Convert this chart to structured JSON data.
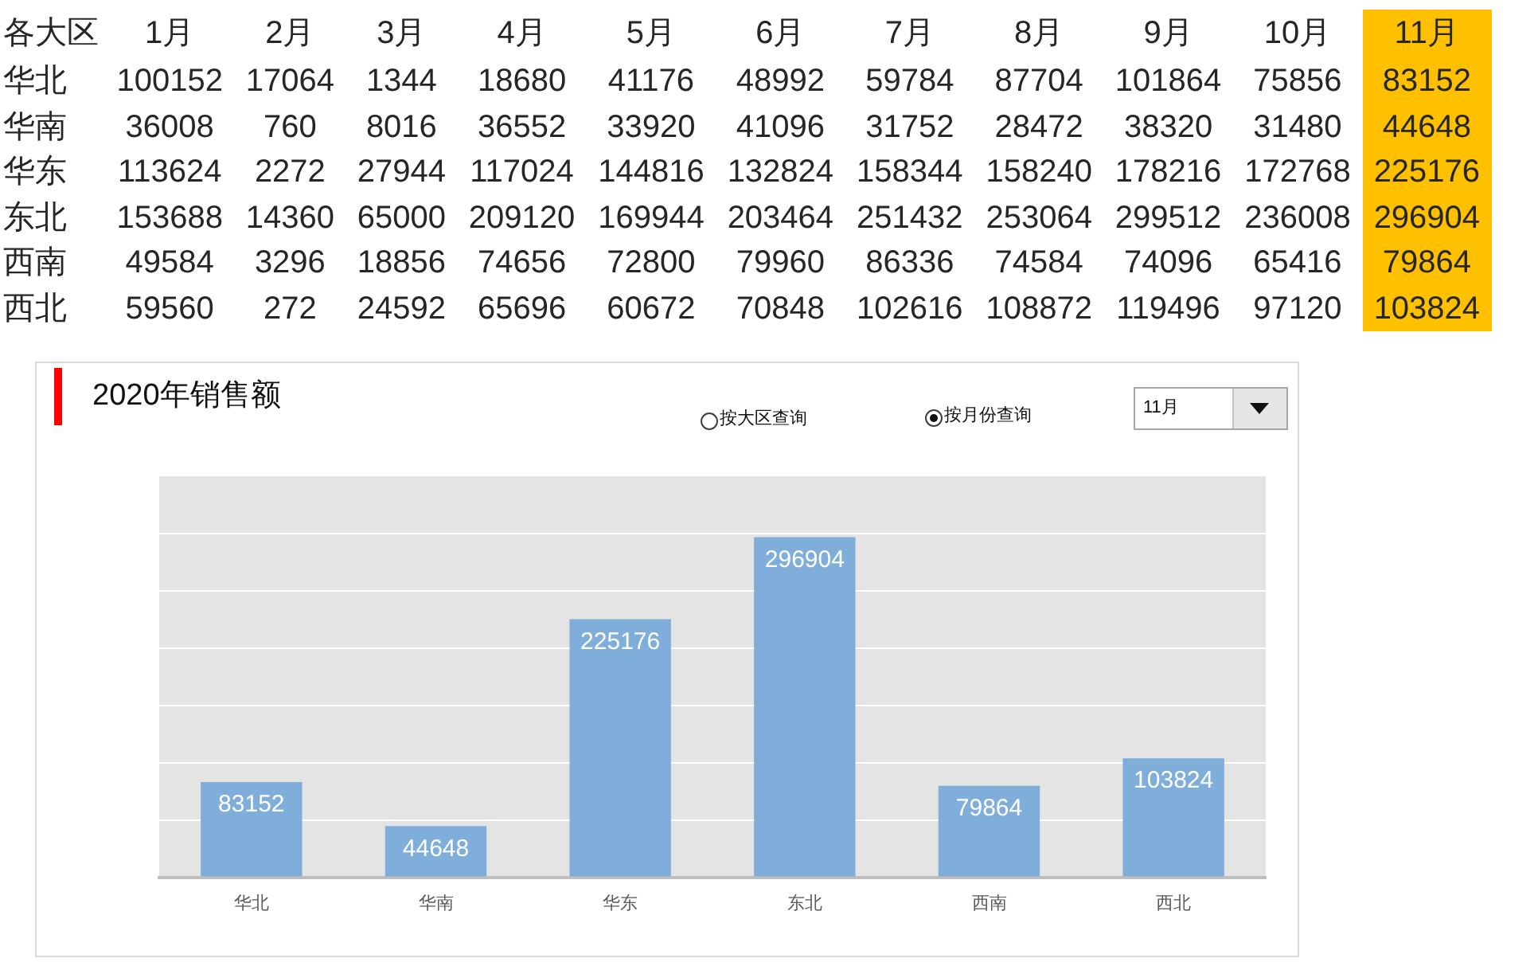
{
  "chart_data": [
    {
      "type": "heatmap",
      "ylabel": "各大区",
      "categories": [
        "1月",
        "2月",
        "3月",
        "4月",
        "5月",
        "6月",
        "7月",
        "8月",
        "9月",
        "10月",
        "11月"
      ],
      "y_categories": [
        "华北",
        "华南",
        "华东",
        "东北",
        "西南",
        "西北"
      ],
      "cells": [
        [
          100152,
          17064,
          1344,
          18680,
          41176,
          48992,
          59784,
          87704,
          101864,
          75856,
          83152
        ],
        [
          36008,
          760,
          8016,
          36552,
          33920,
          41096,
          31752,
          28472,
          38320,
          31480,
          44648
        ],
        [
          113624,
          2272,
          27944,
          117024,
          144816,
          132824,
          158344,
          158240,
          178216,
          172768,
          225176
        ],
        [
          153688,
          14360,
          65000,
          209120,
          169944,
          203464,
          251432,
          253064,
          299512,
          236008,
          296904
        ],
        [
          49584,
          3296,
          18856,
          74656,
          72800,
          79960,
          86336,
          74584,
          74096,
          65416,
          79864
        ],
        [
          59560,
          272,
          24592,
          65696,
          60672,
          70848,
          102616,
          108872,
          119496,
          97120,
          103824
        ]
      ],
      "data_labels": true,
      "bands": [
        {
          "axis": "x",
          "from": "11月",
          "to": "11月",
          "color": "#ffc000"
        }
      ]
    },
    {
      "type": "bar",
      "title": "2020年销售额",
      "categories": [
        "华北",
        "华南",
        "华东",
        "东北",
        "西南",
        "西北"
      ],
      "values": [
        83152,
        44648,
        225176,
        296904,
        79864,
        103824
      ],
      "color": "#80aedb",
      "ylim": [
        0,
        350000
      ],
      "yticks": [
        {
          "value": 0,
          "label": null
        },
        {
          "value": 50000,
          "label": null
        },
        {
          "value": 100000,
          "label": null
        },
        {
          "value": 150000,
          "label": null
        },
        {
          "value": 200000,
          "label": null
        },
        {
          "value": 250000,
          "label": null
        },
        {
          "value": 300000,
          "label": null
        }
      ],
      "grid": "y",
      "tick_labels": "x",
      "data_labels": true,
      "annotations": [
        "按大区查询",
        "按月份查询",
        "11月"
      ]
    }
  ]
}
